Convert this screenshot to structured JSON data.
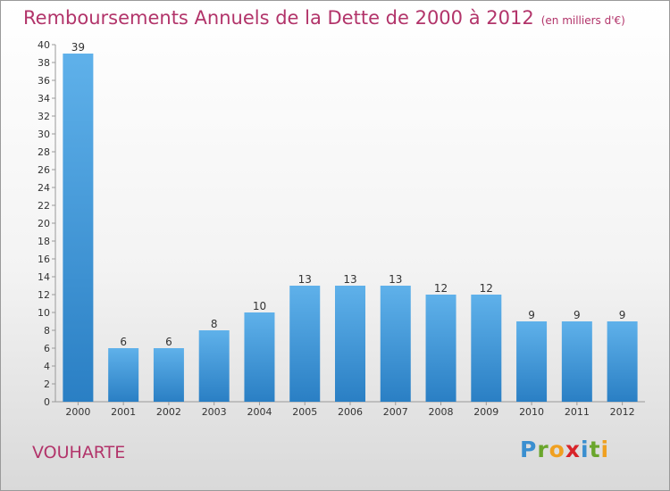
{
  "header": {
    "title": "Remboursements Annuels de la Dette de 2000 à 2012",
    "subtitle": "(en milliers d'€)"
  },
  "footer": {
    "commune": "VOUHARTE",
    "logo_text": "Proxiti"
  },
  "colors": {
    "title": "#b2346a",
    "bar_top": "#5fb1ea",
    "bar_bottom": "#2a7fc4"
  },
  "chart_data": {
    "type": "bar",
    "title": "Remboursements Annuels de la Dette de 2000 à 2012",
    "subtitle": "(en milliers d'€)",
    "categories": [
      "2000",
      "2001",
      "2002",
      "2003",
      "2004",
      "2005",
      "2006",
      "2007",
      "2008",
      "2009",
      "2010",
      "2011",
      "2012"
    ],
    "values": [
      39,
      6,
      6,
      8,
      10,
      13,
      13,
      13,
      12,
      12,
      9,
      9,
      9
    ],
    "ylim": [
      0,
      40
    ],
    "yticks": [
      0,
      2,
      4,
      6,
      8,
      10,
      12,
      14,
      16,
      18,
      20,
      22,
      24,
      26,
      28,
      30,
      32,
      34,
      36,
      38,
      40
    ],
    "grid": false,
    "legend": "none"
  }
}
